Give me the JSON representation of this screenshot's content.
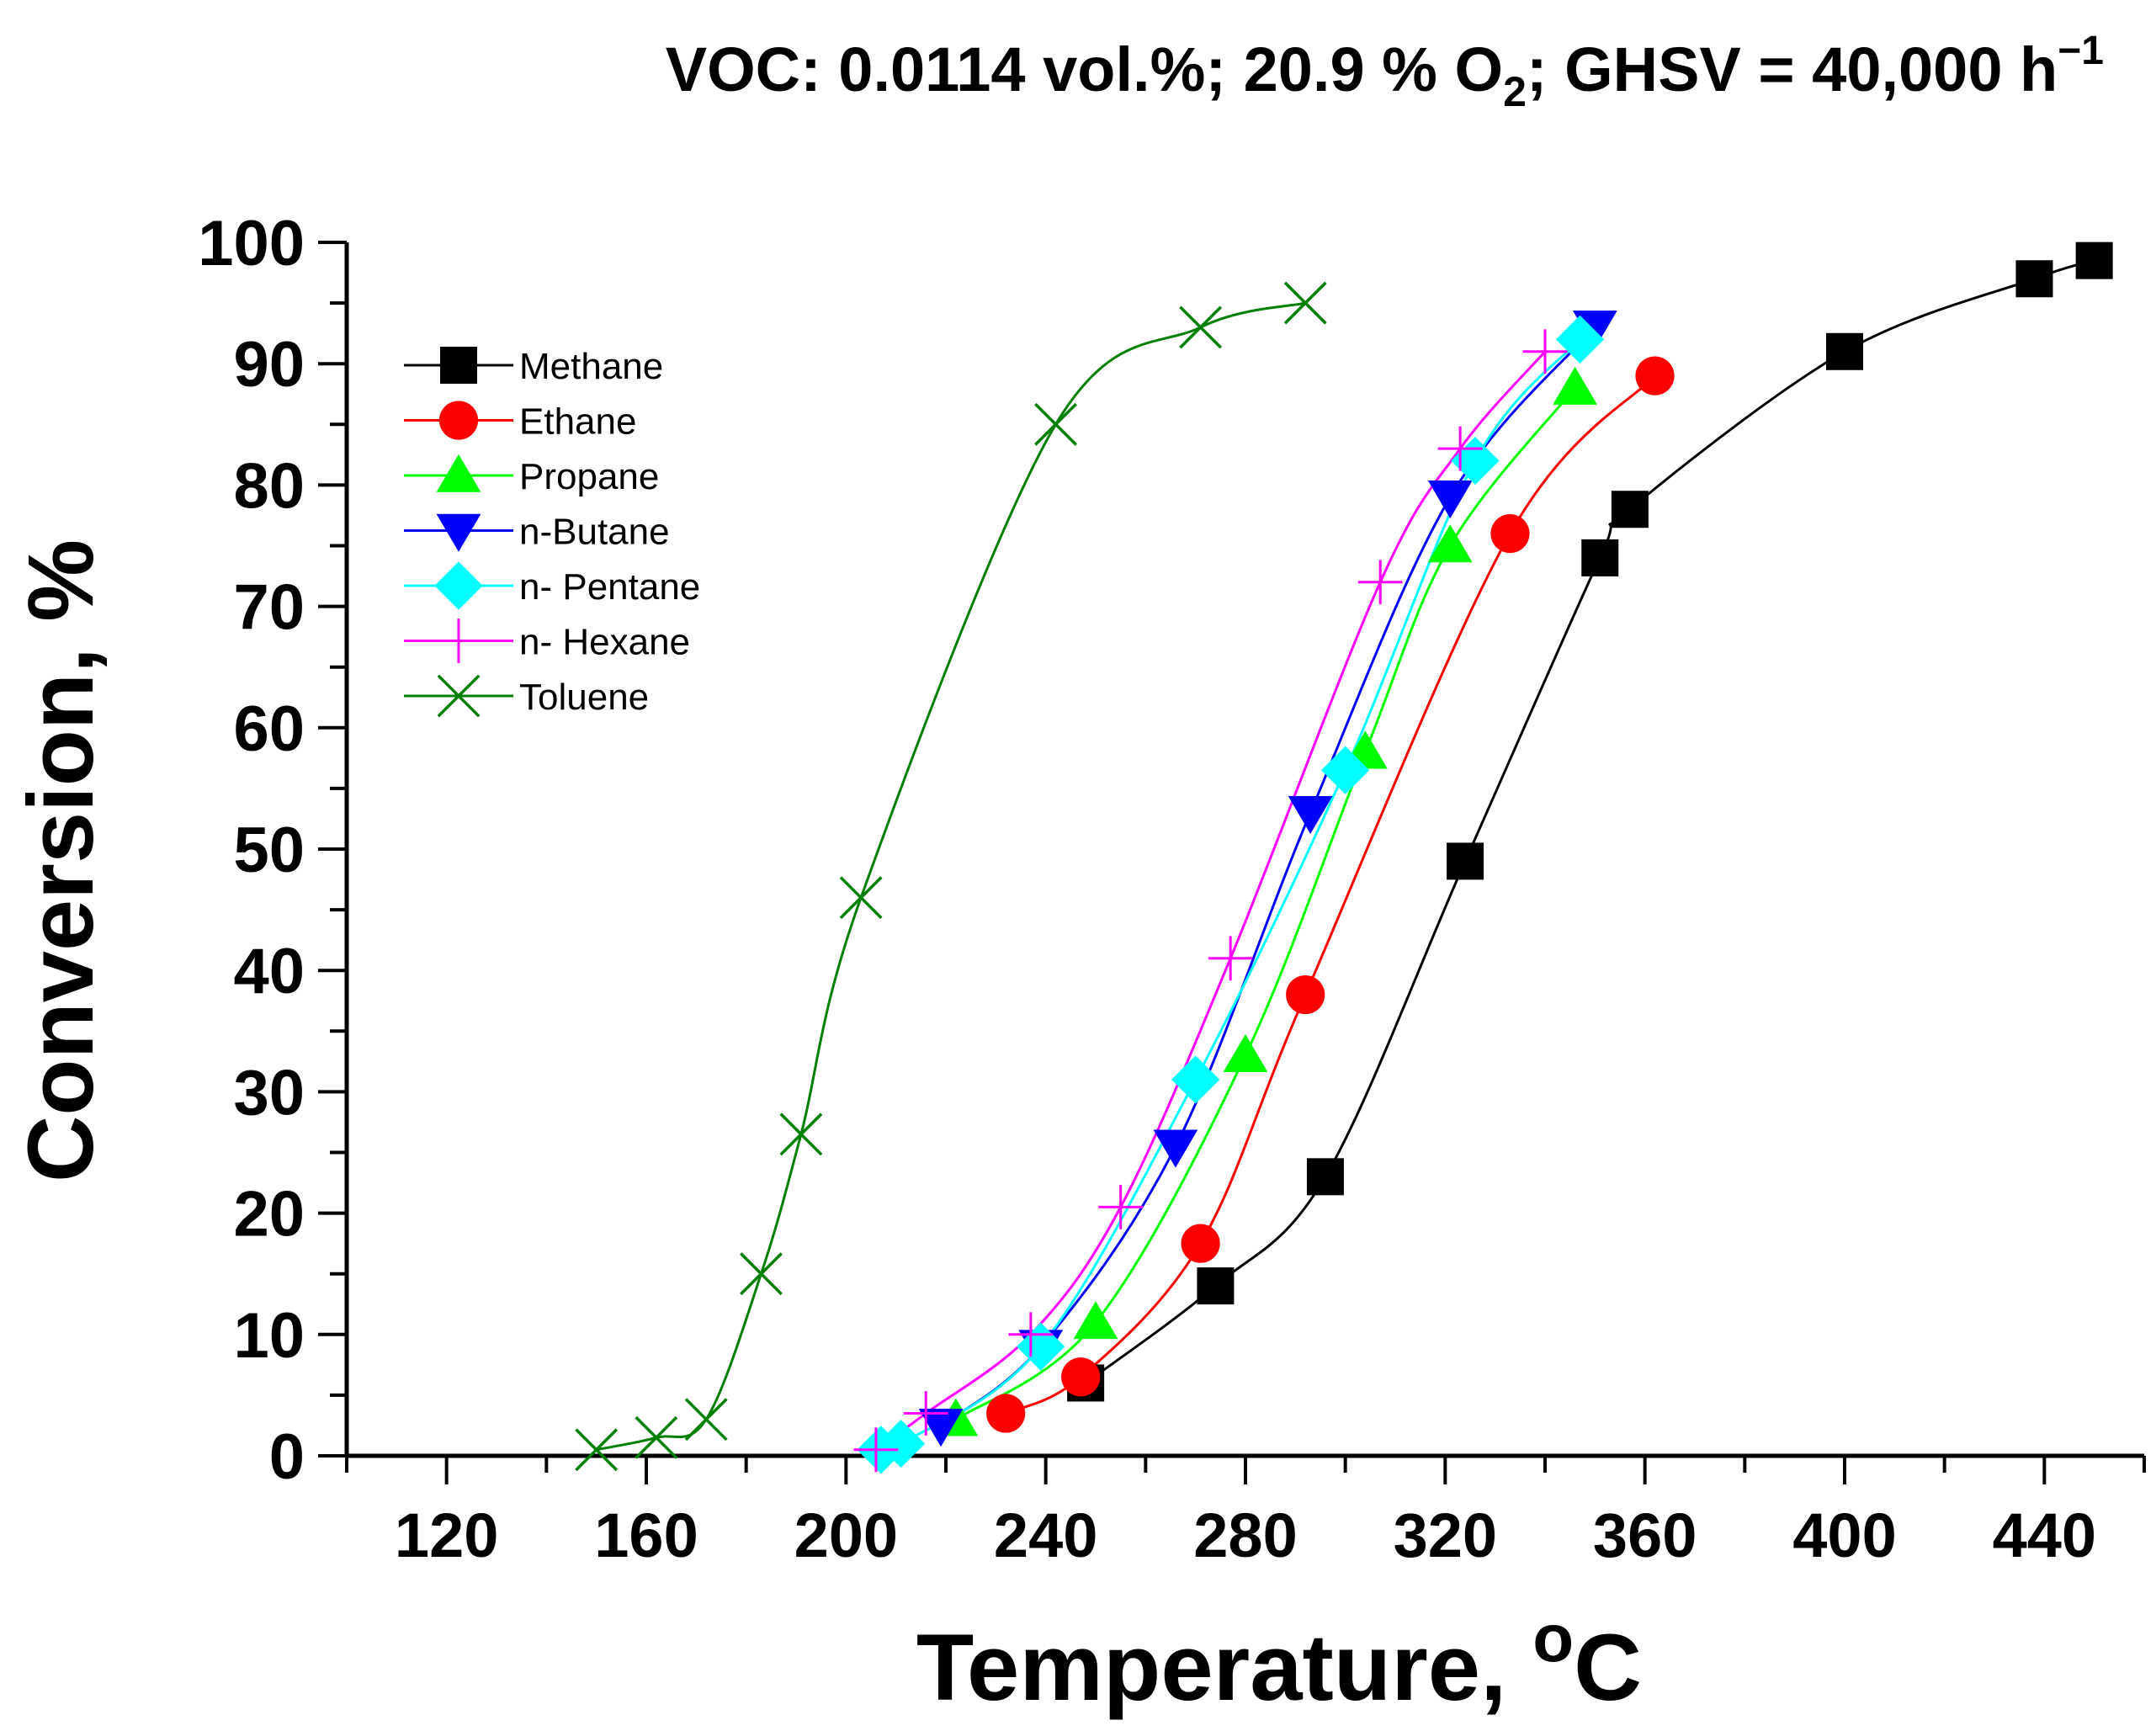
{
  "chart_data": {
    "type": "line",
    "title_main": "VOC: 0.0114 vol.%; 20.9 % O",
    "title_o2_sub": "2",
    "title_ghsv": "; GHSV = 40,000 h",
    "title_exp": "−1",
    "xlabel": "Temperature, ",
    "xlabel_unit_sup": "o",
    "xlabel_unit": "C",
    "ylabel": "Conversion, %",
    "xlim": [
      100,
      460
    ],
    "ylim": [
      0,
      100
    ],
    "x_ticks": [
      120,
      160,
      200,
      240,
      280,
      320,
      360,
      400,
      440
    ],
    "x_tick_labels": [
      "120",
      "160",
      "200",
      "240",
      "280",
      "320",
      "360",
      "400",
      "440"
    ],
    "y_ticks": [
      0,
      10,
      20,
      30,
      40,
      50,
      60,
      70,
      80,
      90,
      100
    ],
    "y_tick_labels": [
      "0",
      "10",
      "20",
      "30",
      "40",
      "50",
      "60",
      "70",
      "80",
      "90",
      "100"
    ],
    "legend_position": "top-left",
    "series": [
      {
        "name": "Methane",
        "color": "#000000",
        "marker": "square",
        "x": [
          248,
          274,
          296,
          324,
          351,
          357,
          400,
          438,
          450
        ],
        "y": [
          6,
          14,
          23,
          49,
          74,
          78,
          91,
          97,
          98.5
        ]
      },
      {
        "name": "Ethane",
        "color": "#ff0000",
        "marker": "circle",
        "x": [
          232,
          247,
          271,
          292,
          333,
          362
        ],
        "y": [
          3.5,
          6.5,
          17.5,
          38,
          76,
          89
        ]
      },
      {
        "name": "Propane",
        "color": "#00ff00",
        "marker": "triangle-up",
        "x": [
          222,
          250,
          280,
          304,
          321,
          346
        ],
        "y": [
          3,
          11,
          33,
          58,
          75,
          88
        ]
      },
      {
        "name": "n-Butane",
        "color": "#0000ff",
        "marker": "triangle-down",
        "x": [
          219,
          239,
          266,
          293,
          321,
          350
        ],
        "y": [
          2.5,
          9,
          25.5,
          53,
          79,
          93
        ]
      },
      {
        "name": "n- Pentane",
        "color": "#00ffff",
        "marker": "diamond",
        "x": [
          207,
          211,
          239,
          270,
          300,
          326,
          347
        ],
        "y": [
          0.5,
          1,
          9,
          31,
          56.5,
          82,
          92
        ]
      },
      {
        "name": "n- Hexane",
        "color": "#ff00ff",
        "marker": "plus",
        "x": [
          206,
          216,
          237,
          255,
          277,
          307,
          323,
          340
        ],
        "y": [
          0.5,
          3.5,
          10,
          20.5,
          41,
          72,
          83,
          91
        ]
      },
      {
        "name": "Toluene",
        "color": "#008000",
        "marker": "x",
        "x": [
          150,
          162,
          172,
          183,
          191,
          203,
          242,
          271,
          292
        ],
        "y": [
          0.5,
          1.5,
          3,
          15,
          26.5,
          46,
          85,
          93,
          95
        ]
      }
    ]
  }
}
